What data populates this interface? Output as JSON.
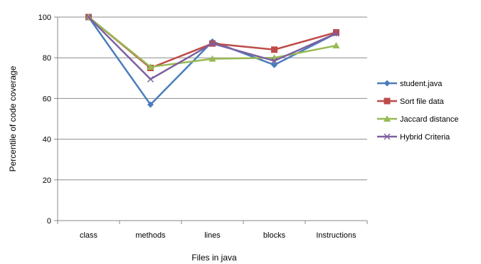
{
  "chart_data": {
    "type": "line",
    "xlabel": "Files in java",
    "ylabel": "Percentile of code coverage",
    "ylim": [
      0,
      100
    ],
    "yticks": [
      0,
      20,
      40,
      60,
      80,
      100
    ],
    "grid": "horizontal",
    "legend_position": "right",
    "categories": [
      "class",
      "methods",
      "lines",
      "blocks",
      "Instructions"
    ],
    "series": [
      {
        "name": "student.java",
        "values": [
          100,
          57,
          88,
          76.5,
          92
        ],
        "color": "#4a7ebb",
        "marker": "diamond"
      },
      {
        "name": "Sort file data",
        "values": [
          100,
          75,
          87,
          84,
          92.5
        ],
        "color": "#be4b48",
        "marker": "square"
      },
      {
        "name": "Jaccard distance",
        "values": [
          100,
          75.5,
          79.5,
          80,
          86
        ],
        "color": "#98b954",
        "marker": "triangle"
      },
      {
        "name": "Hybrid Criteria",
        "values": [
          100,
          69.5,
          87,
          78.5,
          92
        ],
        "color": "#7d60a0",
        "marker": "x"
      }
    ]
  }
}
